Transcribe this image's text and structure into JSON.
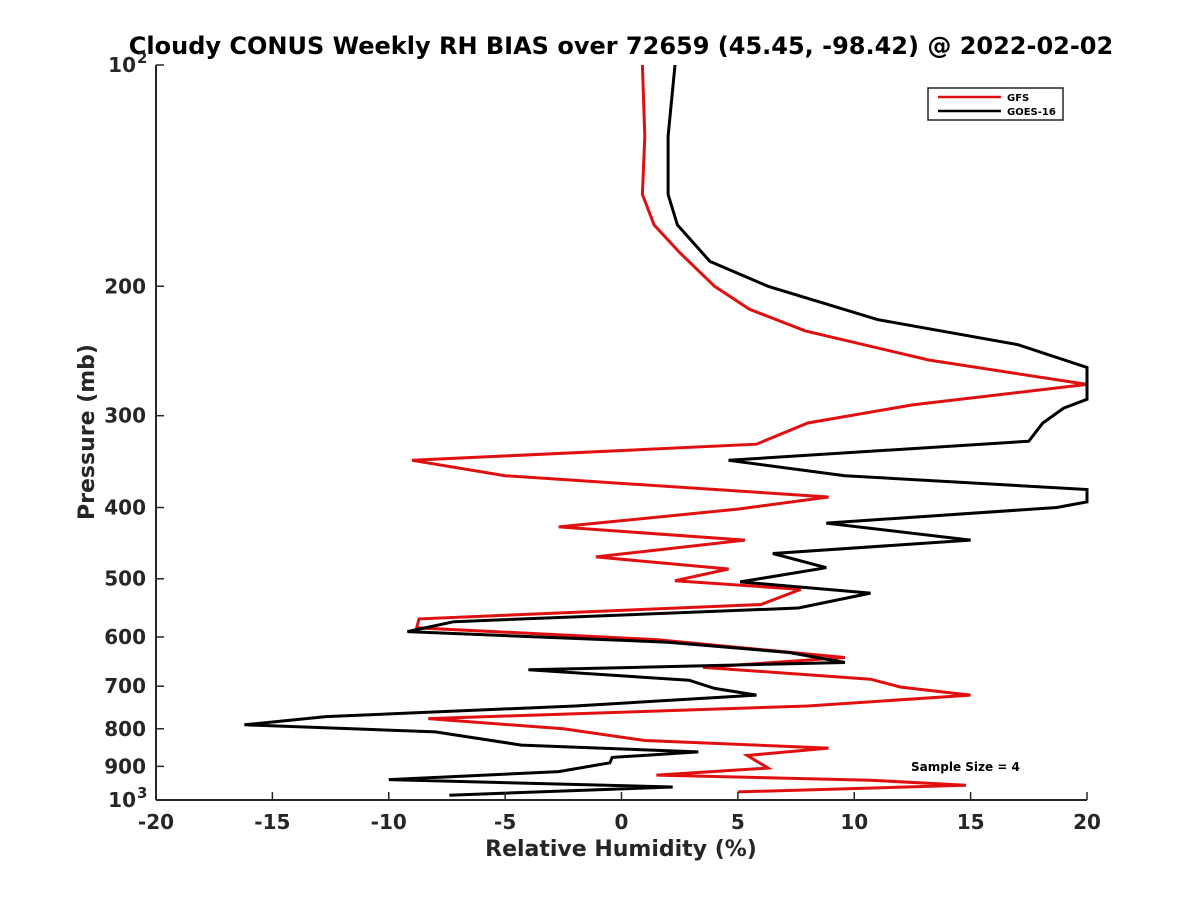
{
  "chart_data": {
    "type": "line",
    "orientation": "vertical-profile",
    "title": "Cloudy CONUS Weekly RH BIAS over 72659 (45.45, -98.42) @ 2022-02-02",
    "xlabel": "Relative Humidity (%)",
    "ylabel": "Pressure (mb)",
    "xlim": [
      -20,
      20
    ],
    "ylim": [
      100,
      1000
    ],
    "y_scale": "log",
    "y_reversed": true,
    "grid": false,
    "legend_position": "top-right",
    "annotation": "Sample Size = 4",
    "x_ticks": [
      "-20",
      "-15",
      "-10",
      "-5",
      "0",
      "5",
      "10",
      "15",
      "20"
    ],
    "y_ticks": [
      {
        "value": 100,
        "label": "10",
        "sup": "2"
      },
      {
        "value": 200,
        "label": "200",
        "sup": ""
      },
      {
        "value": 300,
        "label": "300",
        "sup": ""
      },
      {
        "value": 400,
        "label": "400",
        "sup": ""
      },
      {
        "value": 500,
        "label": "500",
        "sup": ""
      },
      {
        "value": 600,
        "label": "600",
        "sup": ""
      },
      {
        "value": 700,
        "label": "700",
        "sup": ""
      },
      {
        "value": 800,
        "label": "800",
        "sup": ""
      },
      {
        "value": 900,
        "label": "900",
        "sup": ""
      },
      {
        "value": 1000,
        "label": "10",
        "sup": "3"
      }
    ],
    "series": [
      {
        "name": "GFS",
        "color": "#e01010",
        "points": [
          [
            0.9,
            100
          ],
          [
            1.0,
            125
          ],
          [
            0.9,
            150
          ],
          [
            1.4,
            165
          ],
          [
            2.5,
            180
          ],
          [
            4.0,
            200
          ],
          [
            5.5,
            215
          ],
          [
            7.9,
            230
          ],
          [
            13.2,
            252
          ],
          [
            20.0,
            272
          ],
          [
            12.5,
            290
          ],
          [
            8.0,
            307
          ],
          [
            5.8,
            328
          ],
          [
            -9.0,
            345
          ],
          [
            -5.0,
            362
          ],
          [
            8.9,
            387
          ],
          [
            5.0,
            402
          ],
          [
            -2.7,
            425
          ],
          [
            5.3,
            443
          ],
          [
            -1.1,
            467
          ],
          [
            4.6,
            485
          ],
          [
            2.3,
            503
          ],
          [
            7.7,
            517
          ],
          [
            6.0,
            542
          ],
          [
            -8.7,
            567
          ],
          [
            -8.8,
            583
          ],
          [
            1.5,
            605
          ],
          [
            9.6,
            640
          ],
          [
            3.5,
            660
          ],
          [
            10.7,
            685
          ],
          [
            12.0,
            702
          ],
          [
            15.0,
            720
          ],
          [
            8.0,
            745
          ],
          [
            -8.3,
            775
          ],
          [
            -2.5,
            800
          ],
          [
            1.0,
            830
          ],
          [
            8.9,
            850
          ],
          [
            5.4,
            870
          ],
          [
            6.3,
            905
          ],
          [
            1.5,
            925
          ],
          [
            10.7,
            940
          ],
          [
            14.8,
            955
          ],
          [
            5.0,
            975
          ]
        ]
      },
      {
        "name": "GOES-16",
        "color": "#000000",
        "points": [
          [
            2.3,
            100
          ],
          [
            2.0,
            125
          ],
          [
            2.0,
            150
          ],
          [
            2.4,
            165
          ],
          [
            3.8,
            185
          ],
          [
            6.3,
            200
          ],
          [
            11.0,
            222
          ],
          [
            17.0,
            240
          ],
          [
            20.0,
            258
          ],
          [
            20.0,
            285
          ],
          [
            19.0,
            293
          ],
          [
            18.1,
            307
          ],
          [
            17.5,
            325
          ],
          [
            4.6,
            345
          ],
          [
            9.6,
            362
          ],
          [
            20.0,
            378
          ],
          [
            20.0,
            393
          ],
          [
            18.7,
            400
          ],
          [
            8.8,
            420
          ],
          [
            15.0,
            443
          ],
          [
            6.5,
            462
          ],
          [
            8.8,
            483
          ],
          [
            5.1,
            505
          ],
          [
            10.7,
            523
          ],
          [
            7.6,
            548
          ],
          [
            -7.2,
            572
          ],
          [
            -9.2,
            590
          ],
          [
            2.0,
            610
          ],
          [
            7.2,
            630
          ],
          [
            9.6,
            650
          ],
          [
            -4.0,
            665
          ],
          [
            2.9,
            687
          ],
          [
            4.0,
            705
          ],
          [
            5.8,
            720
          ],
          [
            -2.0,
            745
          ],
          [
            -12.7,
            770
          ],
          [
            -16.2,
            790
          ],
          [
            -8.0,
            808
          ],
          [
            -4.3,
            842
          ],
          [
            3.3,
            860
          ],
          [
            -0.4,
            875
          ],
          [
            -0.5,
            890
          ],
          [
            -2.7,
            915
          ],
          [
            -10.0,
            938
          ],
          [
            2.2,
            960
          ],
          [
            -7.4,
            985
          ]
        ]
      }
    ]
  }
}
